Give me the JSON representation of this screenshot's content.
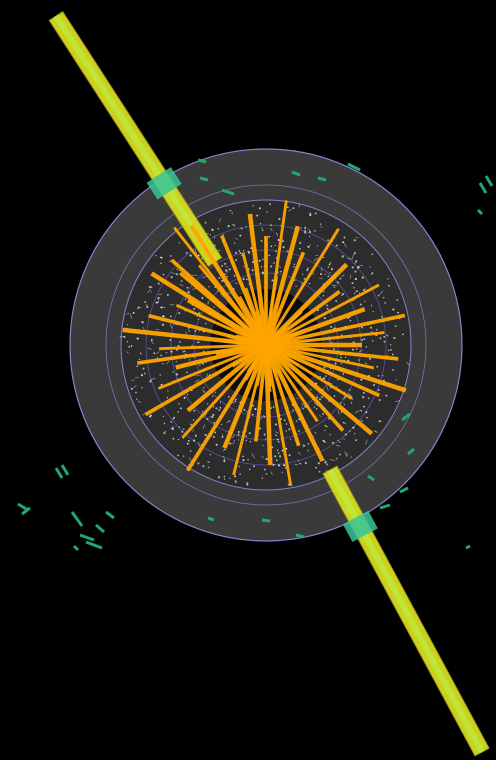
{
  "colors": {
    "background": "#000000",
    "outer_ring": "#3a3a3a",
    "inner_ring": "#2c2c2c",
    "ring_border": "#8a7fd0",
    "core": "#0a0a10",
    "hits": "#d8d8d8",
    "tracks": "#ffa500",
    "jet_bars": "#d9dc22",
    "jet_bar_border": "#9ea012",
    "muon_segments": "#1fa873",
    "muon_highlight": "#37c49a",
    "lime_stripe": "#b8f040"
  }
}
